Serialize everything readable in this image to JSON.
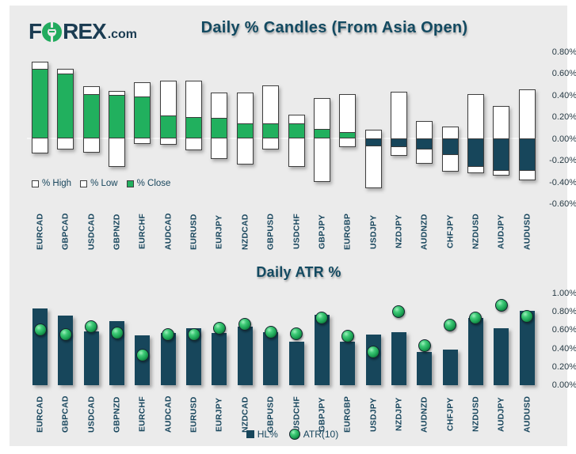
{
  "brand": {
    "f": "F",
    "rex": "REX",
    "tld": ".com",
    "o_icon": "forex-o-ring"
  },
  "colors": {
    "panel_bg": "#EBEBEB",
    "title": "#134A61",
    "green": "#21B05E",
    "navy": "#17465B",
    "candle_border": "#3E3E3E",
    "axis_text": "#273A44",
    "label_text": "#17455C"
  },
  "chart_data": [
    {
      "type": "bar",
      "subtype": "range-candle-open-high-low-close-percent",
      "title": "Daily % Candles (From Asia Open)",
      "categories": [
        "EURCAD",
        "GBPCAD",
        "USDCAD",
        "GBPNZD",
        "EURCHF",
        "AUDCAD",
        "EURUSD",
        "EURJPY",
        "NZDCAD",
        "GBPUSD",
        "USDCHF",
        "GBPJPY",
        "EURGBP",
        "USDJPY",
        "NZDJPY",
        "AUDNZD",
        "CHFJPY",
        "NZDUSD",
        "AUDJPY",
        "AUDUSD"
      ],
      "series": [
        {
          "name": "% High",
          "values": [
            0.71,
            0.64,
            0.48,
            0.44,
            0.52,
            0.53,
            0.53,
            0.42,
            0.42,
            0.49,
            0.22,
            0.37,
            0.41,
            0.08,
            0.43,
            0.16,
            0.11,
            0.41,
            0.3,
            0.45
          ]
        },
        {
          "name": "% Low",
          "values": [
            -0.14,
            -0.1,
            -0.13,
            -0.26,
            -0.05,
            -0.06,
            -0.11,
            -0.19,
            -0.24,
            -0.1,
            -0.26,
            -0.4,
            -0.08,
            -0.46,
            -0.16,
            -0.23,
            -0.31,
            -0.32,
            -0.34,
            -0.39
          ]
        },
        {
          "name": "% Close",
          "values": [
            0.64,
            0.6,
            0.41,
            0.4,
            0.39,
            0.21,
            0.2,
            0.19,
            0.14,
            0.14,
            0.14,
            0.09,
            0.06,
            -0.07,
            -0.08,
            -0.1,
            -0.15,
            -0.26,
            -0.3,
            -0.3
          ]
        }
      ],
      "legend": [
        "% High",
        "% Low",
        "% Close"
      ],
      "legend_position": "bottom-left",
      "y_ticks": [
        "0.80%",
        "0.60%",
        "0.40%",
        "0.20%",
        "0.00%",
        "-0.20%",
        "-0.40%",
        "-0.60%"
      ],
      "ylim": [
        -0.6,
        0.8
      ],
      "axis_position": "right",
      "grid": "zero-line-only"
    },
    {
      "type": "bar",
      "subtype": "bar-with-point-overlay",
      "title": "Daily ATR %",
      "categories": [
        "EURCAD",
        "GBPCAD",
        "USDCAD",
        "GBPNZD",
        "EURCHF",
        "AUDCAD",
        "EURUSD",
        "EURJPY",
        "NZDCAD",
        "GBPUSD",
        "USDCHF",
        "GBPJPY",
        "EURGBP",
        "USDJPY",
        "NZDJPY",
        "AUDNZD",
        "CHFJPY",
        "NZDUSD",
        "AUDJPY",
        "AUDUSD"
      ],
      "series": [
        {
          "name": "HL%",
          "type": "bar",
          "values": [
            0.84,
            0.76,
            0.59,
            0.7,
            0.54,
            0.57,
            0.62,
            0.57,
            0.64,
            0.58,
            0.47,
            0.77,
            0.47,
            0.55,
            0.58,
            0.36,
            0.39,
            0.73,
            0.62,
            0.81
          ]
        },
        {
          "name": "ATR(10)",
          "type": "point",
          "values": [
            0.61,
            0.56,
            0.65,
            0.58,
            0.34,
            0.56,
            0.56,
            0.63,
            0.67,
            0.59,
            0.57,
            0.74,
            0.54,
            0.37,
            0.81,
            0.44,
            0.66,
            0.74,
            0.88,
            0.76
          ]
        }
      ],
      "legend": [
        "HL%",
        "ATR(10)"
      ],
      "legend_position": "bottom-center",
      "y_ticks": [
        "1.00%",
        "0.80%",
        "0.60%",
        "0.40%",
        "0.20%",
        "0.00%"
      ],
      "ylim": [
        0,
        1.0
      ],
      "axis_position": "right",
      "grid": "none"
    }
  ]
}
